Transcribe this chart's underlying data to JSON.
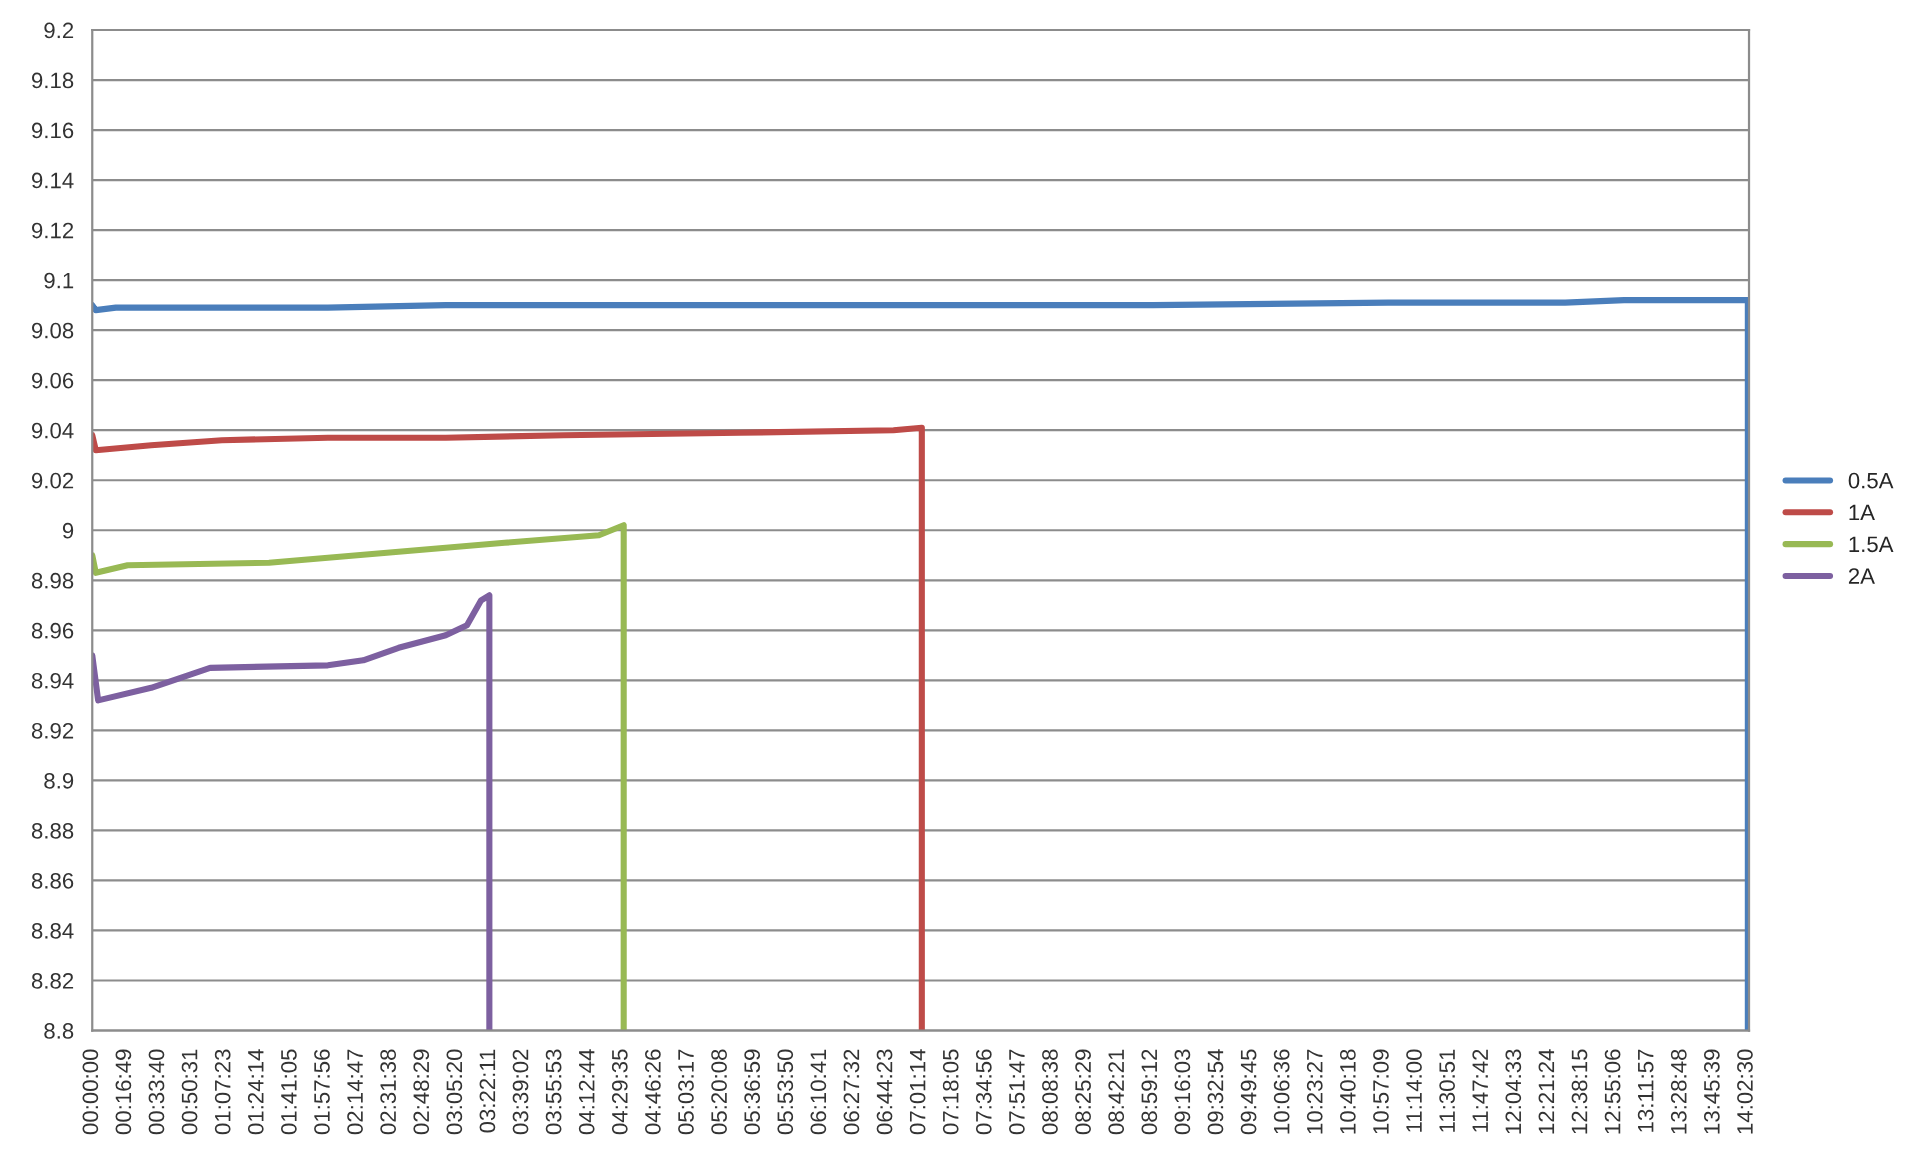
{
  "chart_data": {
    "type": "line",
    "ylim": [
      8.8,
      9.2
    ],
    "yticks": [
      8.8,
      8.82,
      8.84,
      8.86,
      8.88,
      8.9,
      8.92,
      8.94,
      8.96,
      8.98,
      9,
      9.02,
      9.04,
      9.06,
      9.08,
      9.1,
      9.12,
      9.14,
      9.16,
      9.18,
      9.2
    ],
    "xlim": [
      0,
      14.06
    ],
    "xticks": [
      {
        "value": 0,
        "label": "00:00:00"
      },
      {
        "value": 0.2803,
        "label": "00:16:49"
      },
      {
        "value": 0.5611,
        "label": "00:33:40"
      },
      {
        "value": 0.8419,
        "label": "00:50:31"
      },
      {
        "value": 1.1231,
        "label": "01:07:23"
      },
      {
        "value": 1.4039,
        "label": "01:24:14"
      },
      {
        "value": 1.6847,
        "label": "01:41:05"
      },
      {
        "value": 1.9656,
        "label": "01:57:56"
      },
      {
        "value": 2.2464,
        "label": "02:14:47"
      },
      {
        "value": 2.5272,
        "label": "02:31:38"
      },
      {
        "value": 2.8081,
        "label": "02:48:29"
      },
      {
        "value": 3.0889,
        "label": "03:05:20"
      },
      {
        "value": 3.3697,
        "label": "03:22:11"
      },
      {
        "value": 3.6506,
        "label": "03:39:02"
      },
      {
        "value": 3.9314,
        "label": "03:55:53"
      },
      {
        "value": 4.2122,
        "label": "04:12:44"
      },
      {
        "value": 4.4931,
        "label": "04:29:35"
      },
      {
        "value": 4.7739,
        "label": "04:46:26"
      },
      {
        "value": 5.0547,
        "label": "05:03:17"
      },
      {
        "value": 5.3356,
        "label": "05:20:08"
      },
      {
        "value": 5.6164,
        "label": "05:36:59"
      },
      {
        "value": 5.8972,
        "label": "05:53:50"
      },
      {
        "value": 6.1781,
        "label": "06:10:41"
      },
      {
        "value": 6.4589,
        "label": "06:27:32"
      },
      {
        "value": 6.7397,
        "label": "06:44:23"
      },
      {
        "value": 7.0206,
        "label": "07:01:14"
      },
      {
        "value": 7.3014,
        "label": "07:18:05"
      },
      {
        "value": 7.5822,
        "label": "07:34:56"
      },
      {
        "value": 7.8631,
        "label": "07:51:47"
      },
      {
        "value": 8.1439,
        "label": "08:08:38"
      },
      {
        "value": 8.4247,
        "label": "08:25:29"
      },
      {
        "value": 8.7058,
        "label": "08:42:21"
      },
      {
        "value": 8.9867,
        "label": "08:59:12"
      },
      {
        "value": 9.2675,
        "label": "09:16:03"
      },
      {
        "value": 9.5483,
        "label": "09:32:54"
      },
      {
        "value": 9.8292,
        "label": "09:49:45"
      },
      {
        "value": 10.11,
        "label": "10:06:36"
      },
      {
        "value": 10.3908,
        "label": "10:23:27"
      },
      {
        "value": 10.6717,
        "label": "10:40:18"
      },
      {
        "value": 10.9525,
        "label": "10:57:09"
      },
      {
        "value": 11.2333,
        "label": "11:14:00"
      },
      {
        "value": 11.5142,
        "label": "11:30:51"
      },
      {
        "value": 11.795,
        "label": "11:47:42"
      },
      {
        "value": 12.0758,
        "label": "12:04:33"
      },
      {
        "value": 12.3567,
        "label": "12:21:24"
      },
      {
        "value": 12.6375,
        "label": "12:38:15"
      },
      {
        "value": 12.9183,
        "label": "12:55:06"
      },
      {
        "value": 13.1992,
        "label": "13:11:57"
      },
      {
        "value": 13.48,
        "label": "13:28:48"
      },
      {
        "value": 13.7608,
        "label": "13:45:39"
      },
      {
        "value": 14.0417,
        "label": "14:02:30"
      }
    ],
    "grid": "y",
    "legend": "right",
    "series": [
      {
        "name": "0.5A",
        "color": "#4a7ebb",
        "x": [
          0,
          0.03,
          0.2,
          1.0,
          2.0,
          3.0,
          5.0,
          7.0,
          8.0,
          9.0,
          11.0,
          12.5,
          13.0,
          13.5,
          14.05,
          14.05
        ],
        "values": [
          9.09,
          9.088,
          9.089,
          9.089,
          9.089,
          9.09,
          9.09,
          9.09,
          9.09,
          9.09,
          9.091,
          9.091,
          9.092,
          9.092,
          9.092,
          8.8
        ]
      },
      {
        "name": "1A",
        "color": "#be4b48",
        "x": [
          0,
          0.03,
          0.5,
          1.1,
          2.0,
          3.0,
          4.0,
          5.5,
          6.8,
          7.04,
          7.04
        ],
        "values": [
          9.038,
          9.032,
          9.034,
          9.036,
          9.037,
          9.037,
          9.038,
          9.039,
          9.04,
          9.041,
          8.8
        ]
      },
      {
        "name": "1.5A",
        "color": "#98b954",
        "x": [
          0,
          0.03,
          0.3,
          1.5,
          2.5,
          3.5,
          4.3,
          4.51,
          4.51
        ],
        "values": [
          8.99,
          8.983,
          8.986,
          8.987,
          8.991,
          8.995,
          8.998,
          9.002,
          8.8
        ]
      },
      {
        "name": "2A",
        "color": "#7d60a0",
        "x": [
          0,
          0.05,
          0.5,
          1.0,
          2.0,
          2.3,
          2.6,
          3.0,
          3.18,
          3.3,
          3.37,
          3.37
        ],
        "values": [
          8.95,
          8.932,
          8.937,
          8.945,
          8.946,
          8.948,
          8.953,
          8.958,
          8.962,
          8.972,
          8.974,
          8.8
        ]
      }
    ]
  }
}
